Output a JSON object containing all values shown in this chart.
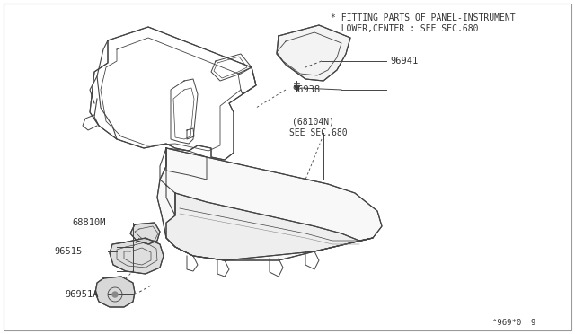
{
  "background_color": "#ffffff",
  "line_color": "#444444",
  "text_color": "#333333",
  "footer": "^969*0  9",
  "note_line1": "* FITTING PARTS OF PANEL-INSTRUMENT",
  "note_line2": "  LOWER,CENTER : SEE SEC.680",
  "label_96941": "96941",
  "label_96938": "96938",
  "label_68104n_1": "(68104N)",
  "label_68104n_2": "SEE SEC.680",
  "label_68810m": "68810M",
  "label_96515": "96515",
  "label_96951a": "96951A",
  "figsize": [
    6.4,
    3.72
  ],
  "dpi": 100
}
